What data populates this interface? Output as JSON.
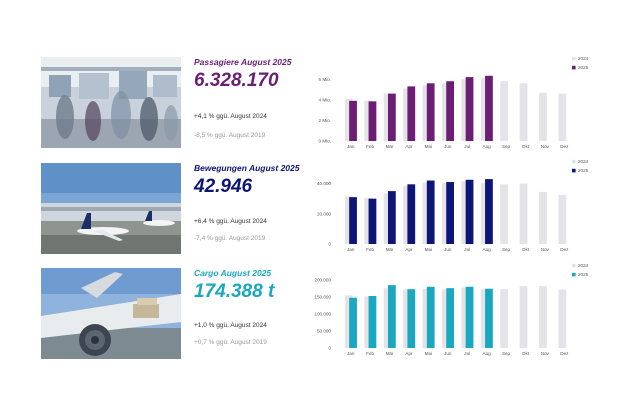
{
  "colors": {
    "passengers": "#6b1e73",
    "movements": "#0d1577",
    "cargo": "#1aa7c0",
    "prior_year": "#e4e4e8"
  },
  "kpis": [
    {
      "title": "Passagiere August 2025",
      "value": "6.328.170",
      "delta_prev": "+4,1 % ggü. August 2024",
      "delta_2019": "-8,5 % ggü. August 2019",
      "photo_icon": "airport-terminal-photo"
    },
    {
      "title": "Bewegungen August 2025",
      "value": "42.946",
      "delta_prev": "+6,4 % ggü. August 2024",
      "delta_2019": "-7,4 % ggü. August 2019",
      "photo_icon": "aircraft-at-gate-photo"
    },
    {
      "title": "Cargo August 2025",
      "value": "174.388 t",
      "delta_prev": "+1,0 % ggü. August 2024",
      "delta_2019": "+0,7 % ggü. August 2019",
      "photo_icon": "cargo-aircraft-photo"
    }
  ],
  "chart_data": [
    {
      "type": "bar",
      "categories": [
        "Jan",
        "Feb",
        "Mär",
        "Apr",
        "Mai",
        "Jun",
        "Jul",
        "Aug",
        "Sep",
        "Okt",
        "Nov",
        "Dez"
      ],
      "ylim": [
        0,
        6.6
      ],
      "ticks": [
        0,
        2,
        4,
        6
      ],
      "tick_labels": [
        "0 Mio.",
        "2 Mio.",
        "4 Mio.",
        "6 Mio."
      ],
      "legend_position": "top-right",
      "series": [
        {
          "name": "2024",
          "color": "#e4e4e8",
          "values": [
            4.1,
            3.9,
            4.6,
            5.1,
            5.4,
            5.6,
            6.0,
            6.1,
            5.8,
            5.6,
            4.7,
            4.6
          ]
        },
        {
          "name": "2025",
          "color": "#6b1e73",
          "values": [
            3.9,
            3.85,
            4.6,
            5.3,
            5.6,
            5.8,
            6.2,
            6.33,
            null,
            null,
            null,
            null
          ]
        }
      ]
    },
    {
      "type": "bar",
      "categories": [
        "Jan",
        "Feb",
        "Mär",
        "Apr",
        "Mai",
        "Jun",
        "Jul",
        "Aug",
        "Sep",
        "Okt",
        "Nov",
        "Dez"
      ],
      "ylim": [
        0,
        45000
      ],
      "ticks": [
        0,
        20000,
        40000
      ],
      "tick_labels": [
        "0",
        "20.000",
        "40.000"
      ],
      "legend_position": "top-right",
      "series": [
        {
          "name": "2024",
          "color": "#e4e4e8",
          "values": [
            31500,
            30500,
            33500,
            38500,
            40500,
            40500,
            41500,
            40300,
            39500,
            40000,
            34500,
            32500
          ]
        },
        {
          "name": "2025",
          "color": "#0d1577",
          "values": [
            31000,
            30000,
            35000,
            39500,
            42000,
            41000,
            42500,
            42946,
            null,
            null,
            null,
            null
          ]
        }
      ]
    },
    {
      "type": "bar",
      "categories": [
        "Jan",
        "Feb",
        "Mär",
        "Apr",
        "Mai",
        "Jun",
        "Jul",
        "Aug",
        "Sep",
        "Okt",
        "Nov",
        "Dez"
      ],
      "ylim": [
        0,
        200000
      ],
      "ticks": [
        0,
        50000,
        100000,
        150000,
        200000
      ],
      "tick_labels": [
        "0",
        "50.000",
        "100.000",
        "150.000",
        "200.000"
      ],
      "legend_position": "top-right",
      "series": [
        {
          "name": "2024",
          "color": "#e4e4e8",
          "values": [
            155000,
            152000,
            176000,
            172000,
            174000,
            172000,
            178000,
            172600,
            173000,
            182000,
            182000,
            172000
          ]
        },
        {
          "name": "2025",
          "color": "#1aa7c0",
          "values": [
            148000,
            153000,
            185000,
            173000,
            180000,
            176000,
            180000,
            174388,
            null,
            null,
            null,
            null
          ]
        }
      ]
    }
  ]
}
